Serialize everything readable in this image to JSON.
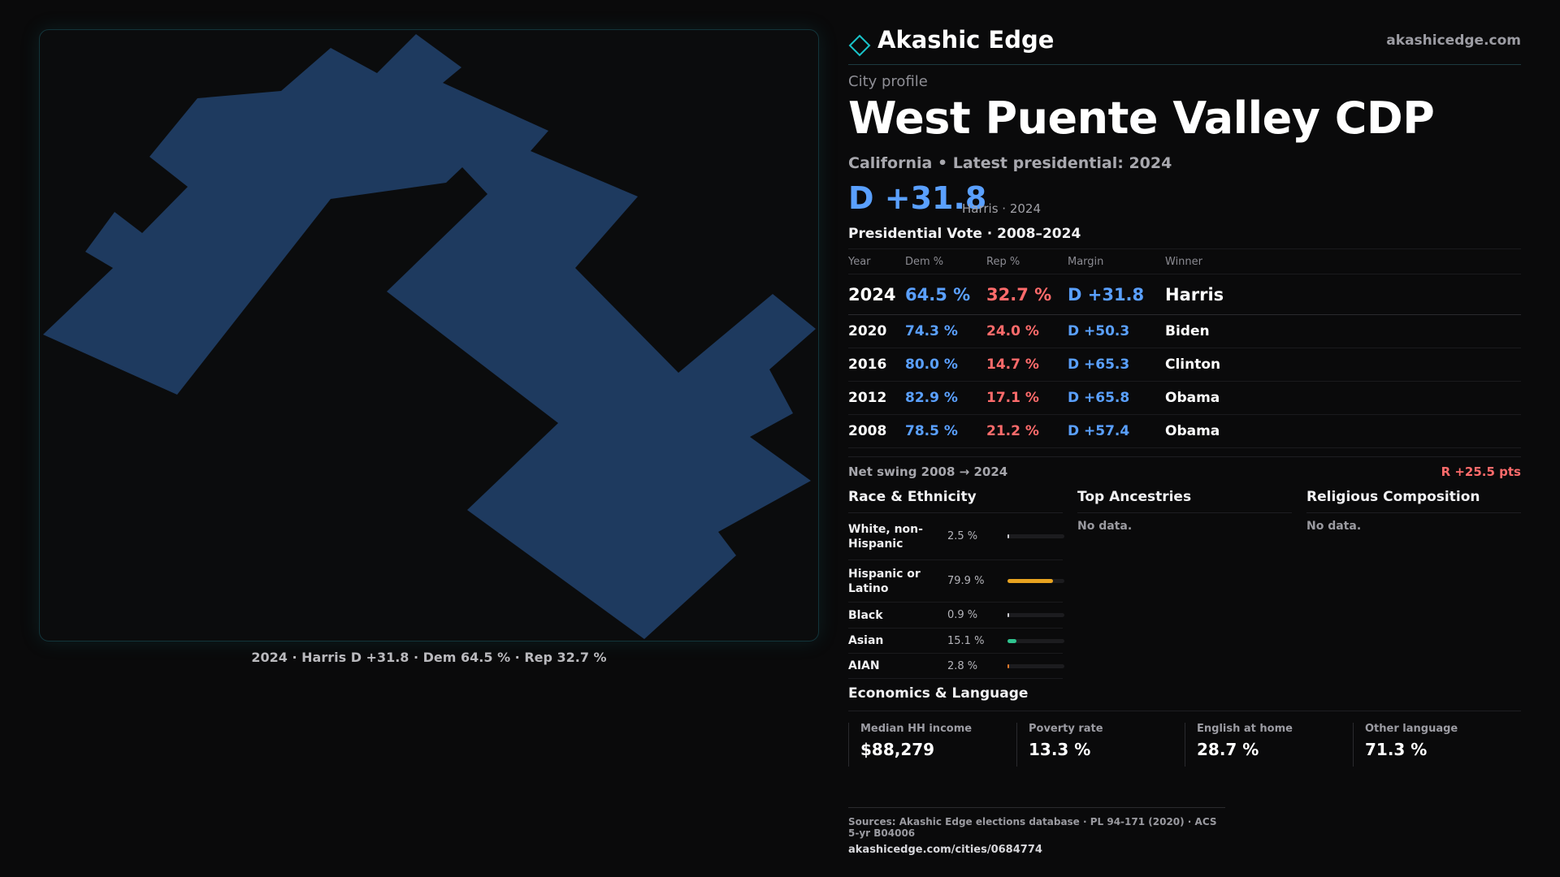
{
  "brand": {
    "name": "Akashic Edge",
    "url": "akashicedge.com",
    "logo_icon": "diamond-outline-icon"
  },
  "profile": {
    "eyebrow": "City profile",
    "title": "West Puente Valley CDP",
    "subtitle": "California • Latest presidential: 2024",
    "margin": "D +31.8",
    "margin_note": "Harris · 2024"
  },
  "map": {
    "caption": "2024 · Harris D +31.8 · Dem 64.5 % · Rep 32.7 %",
    "fill_color": "#1e3a5f",
    "border_color": "#13343a"
  },
  "vote": {
    "title": "Presidential Vote · 2008–2024",
    "headers": {
      "year": "Year",
      "dem": "Dem %",
      "rep": "Rep %",
      "margin": "Margin",
      "winner": "Winner"
    },
    "rows": [
      {
        "year": "2024",
        "dem": "64.5 %",
        "rep": "32.7 %",
        "margin": "D +31.8",
        "winner": "Harris"
      },
      {
        "year": "2020",
        "dem": "74.3 %",
        "rep": "24.0 %",
        "margin": "D +50.3",
        "winner": "Biden"
      },
      {
        "year": "2016",
        "dem": "80.0 %",
        "rep": "14.7 %",
        "margin": "D +65.3",
        "winner": "Clinton"
      },
      {
        "year": "2012",
        "dem": "82.9 %",
        "rep": "17.1 %",
        "margin": "D +65.8",
        "winner": "Obama"
      },
      {
        "year": "2008",
        "dem": "78.5 %",
        "rep": "21.2 %",
        "margin": "D +57.4",
        "winner": "Obama"
      }
    ],
    "swing_label": "Net swing 2008 → 2024",
    "swing_value": "R +25.5 pts"
  },
  "race": {
    "title": "Race & Ethnicity",
    "rows": [
      {
        "label": "White, non-Hispanic",
        "value": "2.5 %",
        "fraction": 0.025,
        "color": "#cfcfd4"
      },
      {
        "label": "Hispanic or Latino",
        "value": "79.9 %",
        "fraction": 0.799,
        "color": "#e8a320"
      },
      {
        "label": "Black",
        "value": "0.9 %",
        "fraction": 0.009,
        "color": "#cfcfd4"
      },
      {
        "label": "Asian",
        "value": "15.1 %",
        "fraction": 0.151,
        "color": "#2fc48f"
      },
      {
        "label": "AIAN",
        "value": "2.8 %",
        "fraction": 0.028,
        "color": "#e07a2a"
      }
    ]
  },
  "ancestry": {
    "title": "Top Ancestries",
    "empty": "No data."
  },
  "religion": {
    "title": "Religious Composition",
    "empty": "No data."
  },
  "econ": {
    "title": "Economics & Language",
    "cells": [
      {
        "label": "Median HH income",
        "value": "$88,279"
      },
      {
        "label": "Poverty rate",
        "value": "13.3 %"
      },
      {
        "label": "English at home",
        "value": "28.7 %"
      },
      {
        "label": "Other language",
        "value": "71.3 %"
      }
    ]
  },
  "footer": {
    "sources": "Sources: Akashic Edge elections database · PL 94-171 (2020) · ACS 5-yr B04006",
    "url": "akashicedge.com/cities/0684774"
  }
}
